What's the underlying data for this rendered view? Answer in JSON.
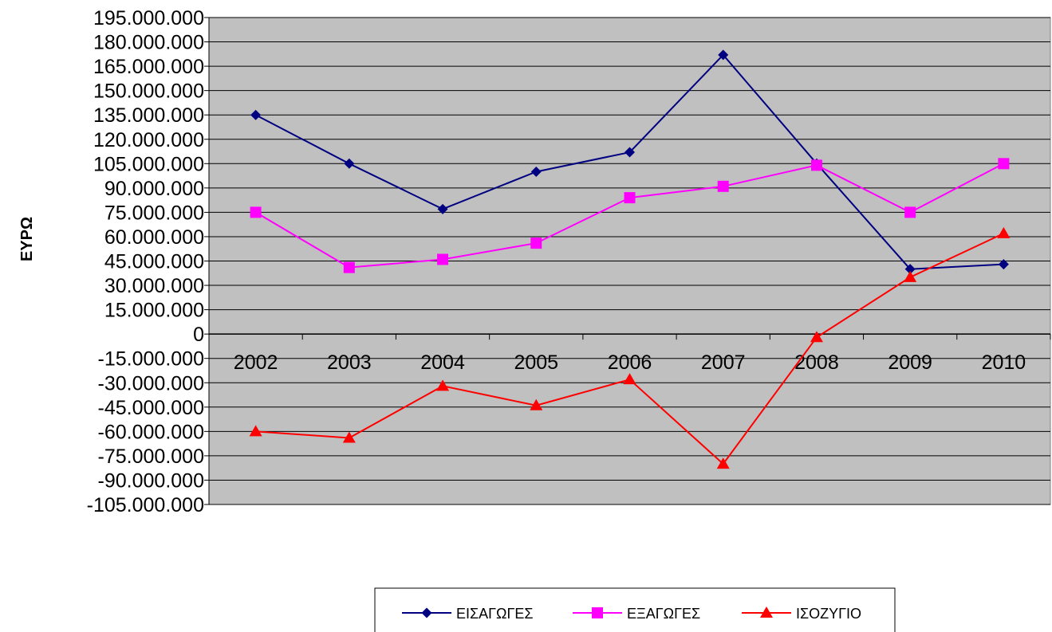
{
  "chart_data": {
    "type": "line",
    "title": "",
    "xlabel": "",
    "ylabel": "ΕΥΡΩ",
    "categories": [
      "2002",
      "2003",
      "2004",
      "2005",
      "2006",
      "2007",
      "2008",
      "2009",
      "2010"
    ],
    "ylim": [
      -105000000,
      195000000
    ],
    "y_step": 15000000,
    "y_tick_labels": [
      "195.000.000",
      "180.000.000",
      "165.000.000",
      "150.000.000",
      "135.000.000",
      "120.000.000",
      "105.000.000",
      "90.000.000",
      "75.000.000",
      "60.000.000",
      "45.000.000",
      "30.000.000",
      "15.000.000",
      "0",
      "-15.000.000",
      "-30.000.000",
      "-45.000.000",
      "-60.000.000",
      "-75.000.000",
      "-90.000.000",
      "-105.000.000"
    ],
    "grid": true,
    "legend_position": "bottom",
    "plot_background": "#c0c0c0",
    "series": [
      {
        "name": "ΕΙΣΑΓΩΓΕΣ",
        "color": "#000080",
        "marker": "diamond",
        "values": [
          135000000,
          105000000,
          77000000,
          100000000,
          112000000,
          172000000,
          105000000,
          40000000,
          43000000
        ]
      },
      {
        "name": "ΕΞΑΓΩΓΕΣ",
        "color": "#ff00ff",
        "marker": "square",
        "values": [
          75000000,
          41000000,
          46000000,
          56000000,
          84000000,
          91000000,
          104000000,
          75000000,
          105000000
        ]
      },
      {
        "name": "ΙΣΟΖΥΓΙΟ",
        "color": "#ff0000",
        "marker": "triangle",
        "values": [
          -60000000,
          -64000000,
          -32000000,
          -44000000,
          -28000000,
          -80000000,
          -2000000,
          35000000,
          62000000
        ]
      }
    ]
  }
}
